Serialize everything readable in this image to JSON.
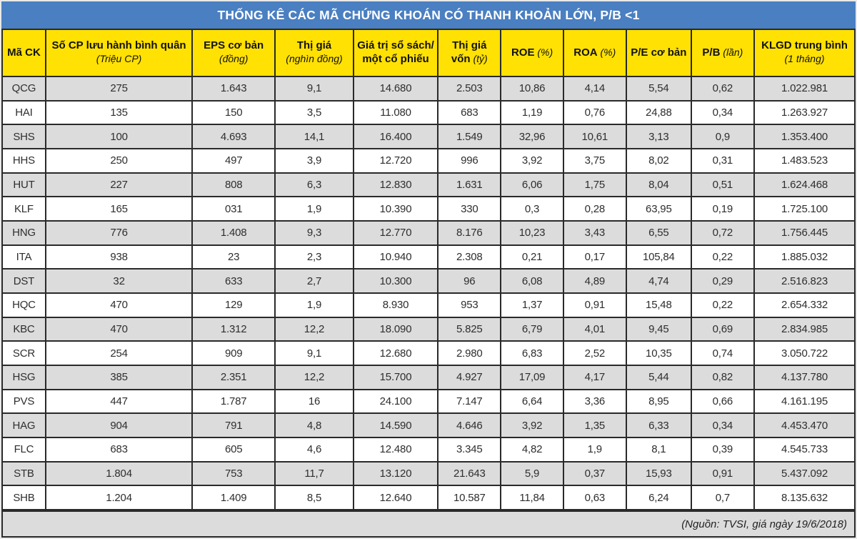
{
  "title": "THỐNG KÊ CÁC MÃ CHỨNG KHOÁN CÓ THANH KHOẢN LỚN, P/B <1",
  "source_note": "(Nguồn: TVSI, giá ngày 19/6/2018)",
  "colors": {
    "title_bar": "#4A7FC1",
    "title_text": "#FFFFFF",
    "header_bg": "#FFE103",
    "row_stripe": "#DCDCDC",
    "row_plain": "#FFFFFF",
    "border": "#2A2A2A",
    "footer_bg": "#DCDCDC"
  },
  "table": {
    "columns": [
      {
        "id": "ma-ck",
        "width": "5.1%",
        "line1": "Mã CK"
      },
      {
        "id": "so-cp",
        "width": "17.2%",
        "line1": "Số CP lưu hành bình quân",
        "line2_italic": "(Triệu CP)"
      },
      {
        "id": "eps-co-ban",
        "width": "9.7%",
        "line1": "EPS cơ bản",
        "line2_italic": "(đồng)"
      },
      {
        "id": "thi-gia",
        "width": "9.2%",
        "line1": "Thị giá",
        "line2_italic": "(nghìn đồng)"
      },
      {
        "id": "gia-tri-so-sach",
        "width": "9.9%",
        "line1": "Giá trị sổ sách/",
        "line2_bold": "một cổ phiếu"
      },
      {
        "id": "thi-gia-von",
        "width": "7.4%",
        "line1": "Thị giá",
        "line2_bold": "vốn",
        "line2_italic": "(tỷ)"
      },
      {
        "id": "roe",
        "width": "7.3%",
        "line1": "ROE",
        "line1_italic": "(%)"
      },
      {
        "id": "roa",
        "width": "7.4%",
        "line1": "ROA",
        "line1_italic": "(%)"
      },
      {
        "id": "pe-co-ban",
        "width": "7.6%",
        "line1": "P/E cơ bản"
      },
      {
        "id": "pb",
        "width": "7.4%",
        "line1": "P/B",
        "line1_italic": "(lần)"
      },
      {
        "id": "klgd",
        "width": "11.8%",
        "line1": "KLGD trung bình",
        "line2_italic": "(1 tháng)"
      }
    ],
    "rows": [
      [
        "QCG",
        "275",
        "1.643",
        "9,1",
        "14.680",
        "2.503",
        "10,86",
        "4,14",
        "5,54",
        "0,62",
        "1.022.981"
      ],
      [
        "HAI",
        "135",
        "150",
        "3,5",
        "11.080",
        "683",
        "1,19",
        "0,76",
        "24,88",
        "0,34",
        "1.263.927"
      ],
      [
        "SHS",
        "100",
        "4.693",
        "14,1",
        "16.400",
        "1.549",
        "32,96",
        "10,61",
        "3,13",
        "0,9",
        "1.353.400"
      ],
      [
        "HHS",
        "250",
        "497",
        "3,9",
        "12.720",
        "996",
        "3,92",
        "3,75",
        "8,02",
        "0,31",
        "1.483.523"
      ],
      [
        "HUT",
        "227",
        "808",
        "6,3",
        "12.830",
        "1.631",
        "6,06",
        "1,75",
        "8,04",
        "0,51",
        "1.624.468"
      ],
      [
        "KLF",
        "165",
        "031",
        "1,9",
        "10.390",
        "330",
        "0,3",
        "0,28",
        "63,95",
        "0,19",
        "1.725.100"
      ],
      [
        "HNG",
        "776",
        "1.408",
        "9,3",
        "12.770",
        "8.176",
        "10,23",
        "3,43",
        "6,55",
        "0,72",
        "1.756.445"
      ],
      [
        "ITA",
        "938",
        "23",
        "2,3",
        "10.940",
        "2.308",
        "0,21",
        "0,17",
        "105,84",
        "0,22",
        "1.885.032"
      ],
      [
        "DST",
        "32",
        "633",
        "2,7",
        "10.300",
        "96",
        "6,08",
        "4,89",
        "4,74",
        "0,29",
        "2.516.823"
      ],
      [
        "HQC",
        "470",
        "129",
        "1,9",
        "8.930",
        "953",
        "1,37",
        "0,91",
        "15,48",
        "0,22",
        "2.654.332"
      ],
      [
        "KBC",
        "470",
        "1.312",
        "12,2",
        "18.090",
        "5.825",
        "6,79",
        "4,01",
        "9,45",
        "0,69",
        "2.834.985"
      ],
      [
        "SCR",
        "254",
        "909",
        "9,1",
        "12.680",
        "2.980",
        "6,83",
        "2,52",
        "10,35",
        "0,74",
        "3.050.722"
      ],
      [
        "HSG",
        "385",
        "2.351",
        "12,2",
        "15.700",
        "4.927",
        "17,09",
        "4,17",
        "5,44",
        "0,82",
        "4.137.780"
      ],
      [
        "PVS",
        "447",
        "1.787",
        "16",
        "24.100",
        "7.147",
        "6,64",
        "3,36",
        "8,95",
        "0,66",
        "4.161.195"
      ],
      [
        "HAG",
        "904",
        "791",
        "4,8",
        "14.590",
        "4.646",
        "3,92",
        "1,35",
        "6,33",
        "0,34",
        "4.453.470"
      ],
      [
        "FLC",
        "683",
        "605",
        "4,6",
        "12.480",
        "3.345",
        "4,82",
        "1,9",
        "8,1",
        "0,39",
        "4.545.733"
      ],
      [
        "STB",
        "1.804",
        "753",
        "11,7",
        "13.120",
        "21.643",
        "5,9",
        "0,37",
        "15,93",
        "0,91",
        "5.437.092"
      ],
      [
        "SHB",
        "1.204",
        "1.409",
        "8,5",
        "12.640",
        "10.587",
        "11,84",
        "0,63",
        "6,24",
        "0,7",
        "8.135.632"
      ]
    ]
  },
  "chart_data": {
    "type": "table",
    "title": "THỐNG KÊ CÁC MÃ CHỨNG KHOÁN CÓ THANH KHOẢN LỚN, P/B <1",
    "source": "(Nguồn: TVSI, giá ngày 19/6/2018)",
    "column_headers": [
      "Mã CK",
      "Số CP lưu hành bình quân (Triệu CP)",
      "EPS cơ bản (đồng)",
      "Thị giá (nghìn đồng)",
      "Giá trị sổ sách/ một cổ phiếu",
      "Thị giá vốn (tỷ)",
      "ROE (%)",
      "ROA (%)",
      "P/E cơ bản",
      "P/B (lần)",
      "KLGD trung bình (1 tháng)"
    ],
    "rows": [
      [
        "QCG",
        "275",
        "1.643",
        "9,1",
        "14.680",
        "2.503",
        "10,86",
        "4,14",
        "5,54",
        "0,62",
        "1.022.981"
      ],
      [
        "HAI",
        "135",
        "150",
        "3,5",
        "11.080",
        "683",
        "1,19",
        "0,76",
        "24,88",
        "0,34",
        "1.263.927"
      ],
      [
        "SHS",
        "100",
        "4.693",
        "14,1",
        "16.400",
        "1.549",
        "32,96",
        "10,61",
        "3,13",
        "0,9",
        "1.353.400"
      ],
      [
        "HHS",
        "250",
        "497",
        "3,9",
        "12.720",
        "996",
        "3,92",
        "3,75",
        "8,02",
        "0,31",
        "1.483.523"
      ],
      [
        "HUT",
        "227",
        "808",
        "6,3",
        "12.830",
        "1.631",
        "6,06",
        "1,75",
        "8,04",
        "0,51",
        "1.624.468"
      ],
      [
        "KLF",
        "165",
        "031",
        "1,9",
        "10.390",
        "330",
        "0,3",
        "0,28",
        "63,95",
        "0,19",
        "1.725.100"
      ],
      [
        "HNG",
        "776",
        "1.408",
        "9,3",
        "12.770",
        "8.176",
        "10,23",
        "3,43",
        "6,55",
        "0,72",
        "1.756.445"
      ],
      [
        "ITA",
        "938",
        "23",
        "2,3",
        "10.940",
        "2.308",
        "0,21",
        "0,17",
        "105,84",
        "0,22",
        "1.885.032"
      ],
      [
        "DST",
        "32",
        "633",
        "2,7",
        "10.300",
        "96",
        "6,08",
        "4,89",
        "4,74",
        "0,29",
        "2.516.823"
      ],
      [
        "HQC",
        "470",
        "129",
        "1,9",
        "8.930",
        "953",
        "1,37",
        "0,91",
        "15,48",
        "0,22",
        "2.654.332"
      ],
      [
        "KBC",
        "470",
        "1.312",
        "12,2",
        "18.090",
        "5.825",
        "6,79",
        "4,01",
        "9,45",
        "0,69",
        "2.834.985"
      ],
      [
        "SCR",
        "254",
        "909",
        "9,1",
        "12.680",
        "2.980",
        "6,83",
        "2,52",
        "10,35",
        "0,74",
        "3.050.722"
      ],
      [
        "HSG",
        "385",
        "2.351",
        "12,2",
        "15.700",
        "4.927",
        "17,09",
        "4,17",
        "5,44",
        "0,82",
        "4.137.780"
      ],
      [
        "PVS",
        "447",
        "1.787",
        "16",
        "24.100",
        "7.147",
        "6,64",
        "3,36",
        "8,95",
        "0,66",
        "4.161.195"
      ],
      [
        "HAG",
        "904",
        "791",
        "4,8",
        "14.590",
        "4.646",
        "3,92",
        "1,35",
        "6,33",
        "0,34",
        "4.453.470"
      ],
      [
        "FLC",
        "683",
        "605",
        "4,6",
        "12.480",
        "3.345",
        "4,82",
        "1,9",
        "8,1",
        "0,39",
        "4.545.733"
      ],
      [
        "STB",
        "1.804",
        "753",
        "11,7",
        "13.120",
        "21.643",
        "5,9",
        "0,37",
        "15,93",
        "0,91",
        "5.437.092"
      ],
      [
        "SHB",
        "1.204",
        "1.409",
        "8,5",
        "12.640",
        "10.587",
        "11,84",
        "0,63",
        "6,24",
        "0,7",
        "8.135.632"
      ]
    ]
  }
}
